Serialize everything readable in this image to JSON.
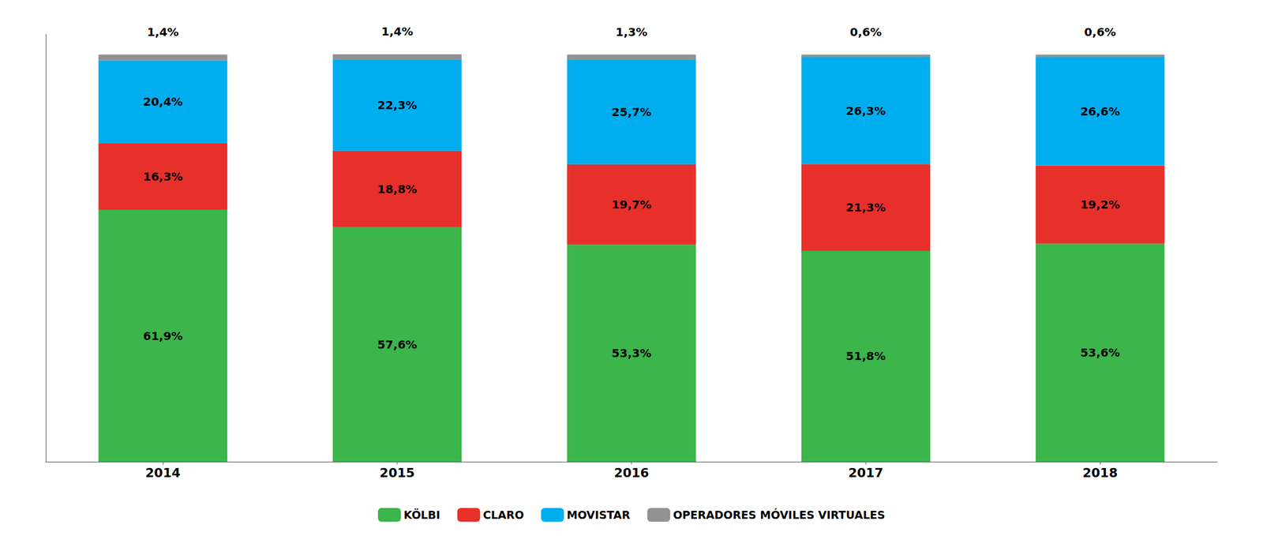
{
  "chart_data": {
    "type": "bar",
    "stacked": true,
    "data_labels": true,
    "tick_labels": "x",
    "grid": false,
    "legend": "bottom",
    "categories": [
      "2014",
      "2015",
      "2016",
      "2017",
      "2018"
    ],
    "ylim": [
      0,
      105
    ],
    "series": [
      {
        "name": "KÖLBI",
        "color": "#3cb54a",
        "values": [
          61.9,
          57.6,
          53.3,
          51.8,
          53.6
        ],
        "value_labels": [
          "61,9%",
          "57,6%",
          "53,3%",
          "51,8%",
          "53,6%"
        ]
      },
      {
        "name": "CLARO",
        "color": "#e8302a",
        "values": [
          16.3,
          18.8,
          19.7,
          21.3,
          19.2
        ],
        "value_labels": [
          "16,3%",
          "18,8%",
          "19,7%",
          "21,3%",
          "19,2%"
        ]
      },
      {
        "name": "MOVISTAR",
        "color": "#00aeef",
        "values": [
          20.4,
          22.3,
          25.7,
          26.3,
          26.6
        ],
        "value_labels": [
          "20,4%",
          "22,3%",
          "25,7%",
          "26,3%",
          "26,6%"
        ]
      },
      {
        "name": "OPERADORES MÓVILES VIRTUALES",
        "color": "#929292",
        "values": [
          1.4,
          1.4,
          1.3,
          0.6,
          0.6
        ],
        "value_labels": [
          "1,4%",
          "1,4%",
          "1,3%",
          "0,6%",
          "0,6%"
        ]
      }
    ]
  }
}
